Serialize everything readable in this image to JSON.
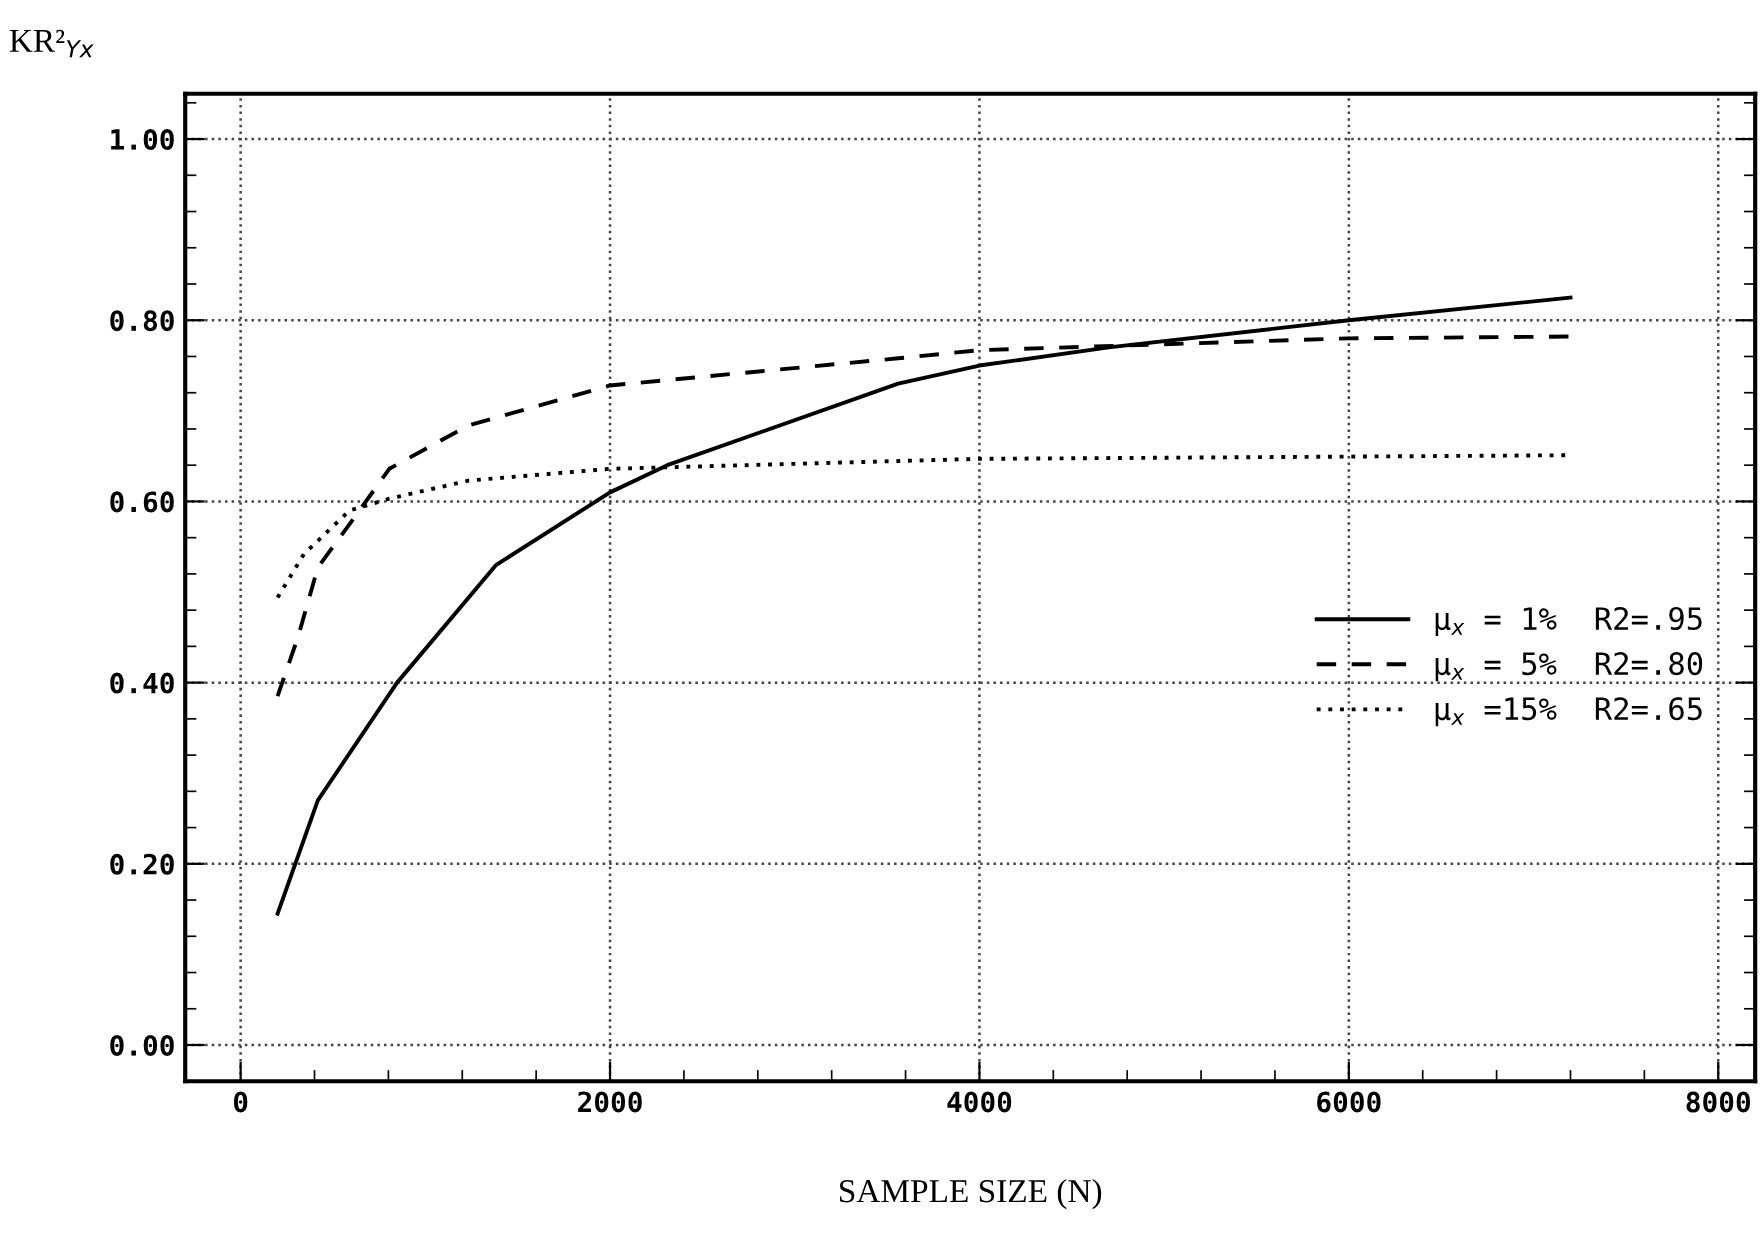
{
  "chart_data": {
    "type": "line",
    "xlabel": "SAMPLE SIZE (N)",
    "ylabel": "KR²$_{Yx}$",
    "xlim": [
      -300,
      8200
    ],
    "xticks": [
      0,
      2000,
      4000,
      6000,
      8000
    ],
    "ylim": [
      -0.04,
      1.05
    ],
    "yticks": [
      {
        "value": 0,
        "label": "0.00"
      },
      {
        "value": 0.2,
        "label": "0.20"
      },
      {
        "value": 0.4,
        "label": "0.40"
      },
      {
        "value": 0.6,
        "label": "0.60"
      },
      {
        "value": 0.8,
        "label": "0.80"
      },
      {
        "value": 1.0,
        "label": "1.00"
      }
    ],
    "grid": true,
    "legend": "right",
    "marker": "none",
    "series": [
      {
        "name": "μ$_{x}$ = 1%  R2=.95",
        "color": "#000000",
        "line_style": "solid",
        "x": [
          200,
          418,
          847,
          1384,
          2000,
          2310,
          3560,
          4000,
          4700,
          6000,
          7200
        ],
        "values": [
          0.145,
          0.27,
          0.4,
          0.53,
          0.61,
          0.64,
          0.73,
          0.75,
          0.77,
          0.8,
          0.825
        ]
      },
      {
        "name": "μ$_{x}$ = 5%  R2=.80",
        "color": "#000000",
        "line_style": "dashed",
        "x": [
          200,
          310,
          418,
          590,
          805,
          1234,
          2000,
          3560,
          4000,
          6000,
          7200
        ],
        "values": [
          0.385,
          0.45,
          0.527,
          0.575,
          0.636,
          0.684,
          0.728,
          0.758,
          0.767,
          0.78,
          0.782
        ]
      },
      {
        "name": "μ$_{x}$ =15%  R2=.65",
        "color": "#000000",
        "line_style": "dotted",
        "x": [
          200,
          343,
          590,
          805,
          1234,
          2000,
          4000,
          7200
        ],
        "values": [
          0.494,
          0.542,
          0.59,
          0.603,
          0.623,
          0.636,
          0.647,
          0.651
        ]
      }
    ]
  }
}
